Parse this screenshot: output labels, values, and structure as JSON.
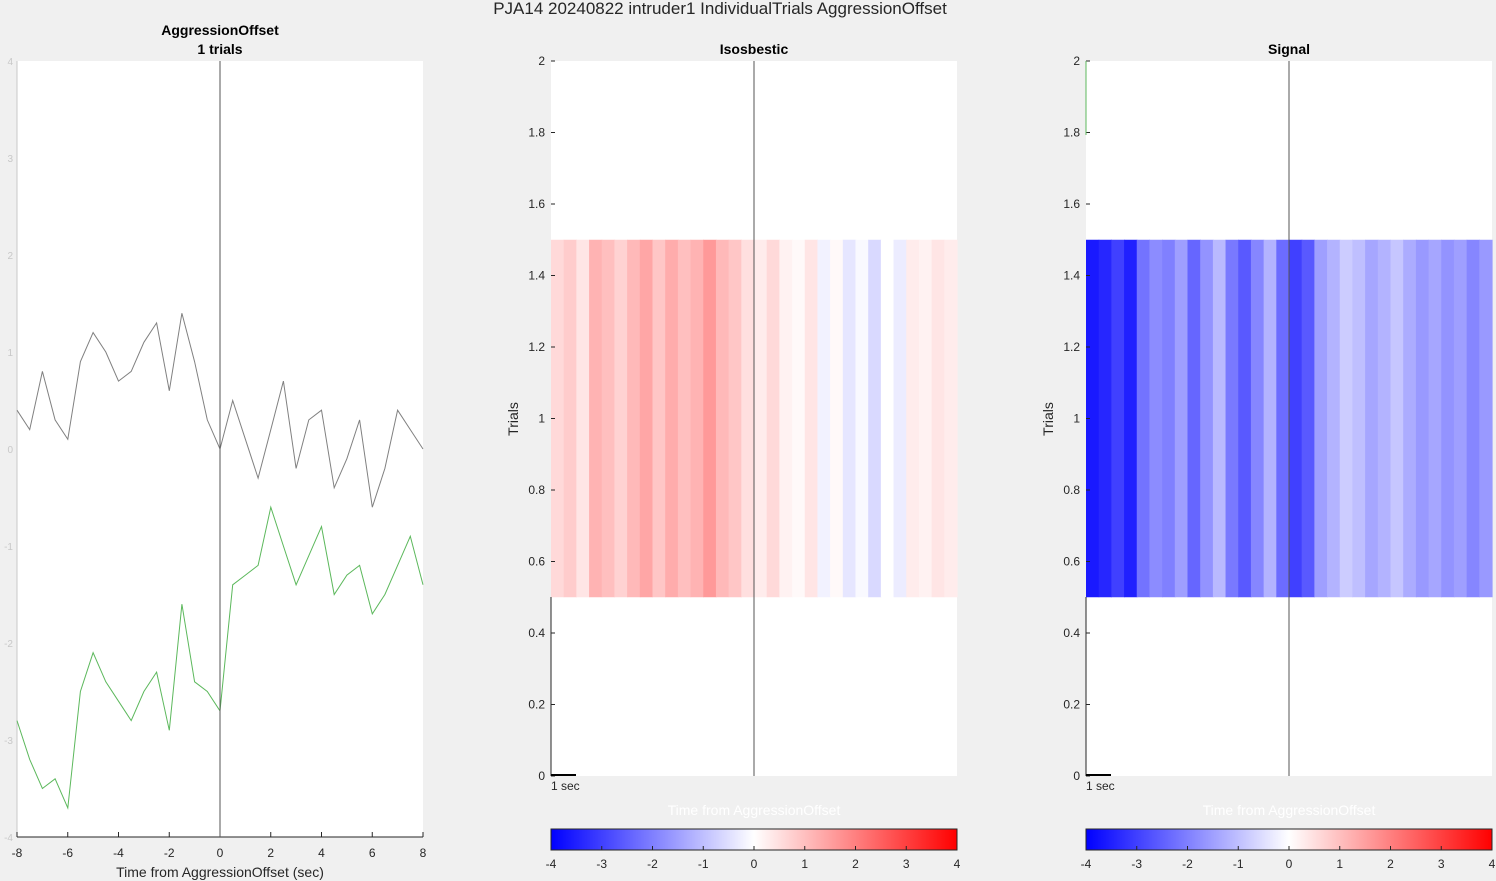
{
  "window": {
    "suptitle": "PJA14 20240822  intruder1 IndividualTrials AggressionOffset"
  },
  "colors": {
    "background": "#f0f0f0",
    "axes_background": "#ffffff",
    "axis_text": "#262626",
    "trace_gray": "#808080",
    "trace_green": "#5cb85c",
    "zero_line": "#555555",
    "faint_label": "#ffffff",
    "cmap_low": "#0000ff",
    "cmap_mid": "#ffffff",
    "cmap_high": "#ff0000"
  },
  "chart_data": [
    {
      "type": "line",
      "title": "AggressionOffset",
      "subtitle": "1 trials",
      "xlabel": "Time from AggressionOffset (sec)",
      "ylabel": "",
      "xlim": [
        -8,
        8
      ],
      "ylim": [
        -4,
        4
      ],
      "xticks": [
        "-8",
        "-6",
        "-4",
        "-2",
        "0",
        "2",
        "4",
        "6",
        "8"
      ],
      "yticks": [
        "-4",
        "-3",
        "-2",
        "-1",
        "0",
        "1",
        "2",
        "3",
        "4"
      ],
      "vline_x": 0,
      "grid": false,
      "series": [
        {
          "color": "#808080",
          "x": [
            -8,
            -7.5,
            -7,
            -6.5,
            -6,
            -5.5,
            -5,
            -4.5,
            -4,
            -3.5,
            -3,
            -2.5,
            -2,
            -1.5,
            -1,
            -0.5,
            0,
            0.5,
            1,
            1.5,
            2,
            2.5,
            3,
            3.5,
            4,
            4.5,
            5,
            5.5,
            6,
            6.5,
            7,
            7.5,
            8
          ],
          "y": [
            0.4,
            0.2,
            0.8,
            0.3,
            0.1,
            0.9,
            1.2,
            1.0,
            0.7,
            0.8,
            1.1,
            1.3,
            0.6,
            1.4,
            0.9,
            0.3,
            0.0,
            0.5,
            0.1,
            -0.3,
            0.2,
            0.7,
            -0.2,
            0.3,
            0.4,
            -0.4,
            -0.1,
            0.3,
            -0.6,
            -0.2,
            0.4,
            0.2,
            0.0
          ]
        },
        {
          "color": "#5cb85c",
          "x": [
            -8,
            -7.5,
            -7,
            -6.5,
            -6,
            -5.5,
            -5,
            -4.5,
            -4,
            -3.5,
            -3,
            -2.5,
            -2,
            -1.5,
            -1,
            -0.5,
            0,
            0.5,
            1,
            1.5,
            2,
            2.5,
            3,
            3.5,
            4,
            4.5,
            5,
            5.5,
            6,
            6.5,
            7,
            7.5,
            8
          ],
          "y": [
            -2.8,
            -3.2,
            -3.5,
            -3.4,
            -3.7,
            -2.5,
            -2.1,
            -2.4,
            -2.6,
            -2.8,
            -2.5,
            -2.3,
            -2.9,
            -1.6,
            -2.4,
            -2.5,
            -2.7,
            -1.4,
            -1.3,
            -1.2,
            -0.6,
            -1.0,
            -1.4,
            -1.1,
            -0.8,
            -1.5,
            -1.3,
            -1.2,
            -1.7,
            -1.5,
            -1.2,
            -0.9,
            -1.4
          ]
        }
      ]
    },
    {
      "type": "heatmap",
      "title": "Isosbestic",
      "ylabel": "Trials",
      "xlabel": "Time from AggressionOffset",
      "xlim": [
        -8,
        8
      ],
      "ylim": [
        0,
        2
      ],
      "yticks": [
        "0",
        "0.2",
        "0.4",
        "0.6",
        "0.8",
        "1",
        "1.2",
        "1.4",
        "1.6",
        "1.8",
        "2"
      ],
      "scalebar_label": "1 sec",
      "row_ymin": 0.5,
      "row_ymax": 1.5,
      "vline_x": 0,
      "clim": [
        -4,
        4
      ],
      "colorbar_ticks": [
        "-4",
        "-3",
        "-2",
        "-1",
        "0",
        "1",
        "2",
        "3",
        "4"
      ],
      "x": [
        -7.75,
        -7.25,
        -6.75,
        -6.25,
        -5.75,
        -5.25,
        -4.75,
        -4.25,
        -3.75,
        -3.25,
        -2.75,
        -2.25,
        -1.75,
        -1.25,
        -0.75,
        -0.25,
        0.25,
        0.75,
        1.25,
        1.75,
        2.25,
        2.75,
        3.25,
        3.75,
        4.25,
        4.75,
        5.25,
        5.75,
        6.25,
        6.75,
        7.25,
        7.75
      ],
      "values": [
        0.6,
        0.8,
        0.4,
        1.2,
        1.0,
        0.7,
        1.1,
        1.4,
        0.9,
        1.3,
        1.0,
        1.2,
        1.6,
        1.1,
        0.9,
        0.5,
        0.3,
        0.6,
        0.2,
        0.1,
        0.4,
        -0.2,
        0.1,
        -0.4,
        -0.1,
        -0.6,
        0.0,
        -0.3,
        0.3,
        0.2,
        0.4,
        0.3
      ]
    },
    {
      "type": "heatmap",
      "title": "Signal",
      "ylabel": "Trials",
      "xlabel": "Time from AggressionOffset",
      "xlim": [
        -8,
        8
      ],
      "ylim": [
        0,
        2
      ],
      "yticks": [
        "0",
        "0.2",
        "0.4",
        "0.6",
        "0.8",
        "1",
        "1.2",
        "1.4",
        "1.6",
        "1.8",
        "2"
      ],
      "scalebar_label": "1 sec",
      "row_ymin": 0.5,
      "row_ymax": 1.5,
      "vline_x": 0,
      "clim": [
        -4,
        4
      ],
      "colorbar_ticks": [
        "-4",
        "-3",
        "-2",
        "-1",
        "0",
        "1",
        "2",
        "3",
        "4"
      ],
      "x": [
        -7.75,
        -7.25,
        -6.75,
        -6.25,
        -5.75,
        -5.25,
        -4.75,
        -4.25,
        -3.75,
        -3.25,
        -2.75,
        -2.25,
        -1.75,
        -1.25,
        -0.75,
        -0.25,
        0.25,
        0.75,
        1.25,
        1.75,
        2.25,
        2.75,
        3.25,
        3.75,
        4.25,
        4.75,
        5.25,
        5.75,
        6.25,
        6.75,
        7.25,
        7.75
      ],
      "values": [
        -3.6,
        -3.4,
        -3.0,
        -3.5,
        -2.2,
        -1.8,
        -2.0,
        -1.5,
        -2.4,
        -1.7,
        -1.1,
        -2.1,
        -2.6,
        -1.9,
        -1.2,
        -2.3,
        -3.0,
        -2.6,
        -1.5,
        -1.2,
        -0.8,
        -1.0,
        -1.4,
        -1.2,
        -0.9,
        -1.3,
        -1.6,
        -1.4,
        -1.7,
        -1.5,
        -1.9,
        -1.6
      ]
    }
  ]
}
